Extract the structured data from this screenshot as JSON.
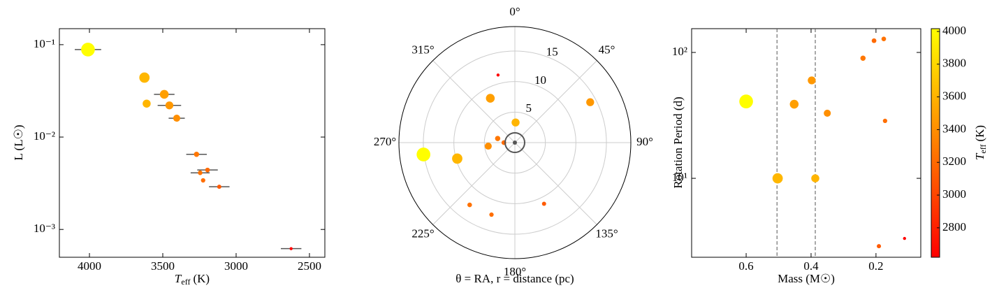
{
  "chart_data": [
    {
      "type": "scatter",
      "xlabel": {
        "symbol": "T",
        "sub": "eff",
        "unit": "(K)"
      },
      "ylabel": "L (L☉)",
      "x": [
        4010,
        3625,
        3490,
        3610,
        3455,
        3405,
        3270,
        3195,
        3245,
        3225,
        3115,
        2625
      ],
      "xerr": [
        90,
        null,
        70,
        null,
        80,
        55,
        70,
        70,
        65,
        null,
        70,
        70
      ],
      "y": [
        0.0885,
        0.044,
        0.029,
        0.023,
        0.022,
        0.016,
        0.0065,
        0.0044,
        0.0041,
        0.0034,
        0.0029,
        0.00062
      ],
      "xlim": [
        4205,
        2395
      ],
      "ylim": [
        0.0005,
        0.149
      ],
      "yscale": "log",
      "xticks": [
        4000,
        3500,
        3000,
        2500
      ],
      "yticks": [
        {
          "value": 0.1,
          "label": "10⁻¹"
        },
        {
          "value": 0.01,
          "label": "10⁻²"
        },
        {
          "value": 0.001,
          "label": "10⁻³"
        }
      ],
      "errorbar_color": "#555555"
    },
    {
      "type": "polar",
      "xlabel": "θ = RA, r = distance (pc)",
      "theta": [
        262.6,
        254.5,
        331,
        2,
        61.8,
        262.5,
        283.5,
        270,
        216,
        198,
        154.5,
        346
      ],
      "r": [
        15.1,
        9.8,
        8.3,
        3.3,
        14.0,
        4.4,
        2.9,
        1.8,
        12.6,
        12.4,
        11.1,
        11.4
      ],
      "rlim": [
        0,
        19
      ],
      "rticks": [
        5,
        10,
        15
      ],
      "thetaticks": [
        {
          "value": 0,
          "label": "0°"
        },
        {
          "value": 45,
          "label": "45°"
        },
        {
          "value": 90,
          "label": "90°"
        },
        {
          "value": 135,
          "label": "135°"
        },
        {
          "value": 180,
          "label": "180°"
        },
        {
          "value": 225,
          "label": "225°"
        },
        {
          "value": 270,
          "label": "270°"
        },
        {
          "value": 315,
          "label": "315°"
        }
      ]
    },
    {
      "type": "scatter",
      "xlabel": "Mass (M☉)",
      "ylabel": "Rotation Period (d)",
      "x": [
        0.6,
        0.503,
        0.452,
        0.387,
        0.398,
        0.35,
        0.24,
        0.206,
        0.176,
        0.172,
        0.191,
        0.112
      ],
      "y": [
        40.8,
        10,
        38.8,
        10,
        60,
        32.9,
        90,
        124,
        128,
        28.6,
        2.89,
        3.33
      ],
      "xlim": [
        0.768,
        0.062
      ],
      "ylim": [
        2.36,
        154.5
      ],
      "yscale": "log",
      "xticks": [
        0.6,
        0.4,
        0.2
      ],
      "yticks": [
        {
          "value": 10,
          "label": "10¹"
        },
        {
          "value": 100,
          "label": "10²"
        }
      ],
      "vlines": [
        0.505,
        0.387
      ],
      "colorbar": {
        "label": {
          "symbol": "T",
          "sub": "eff",
          "unit": "(K)"
        },
        "lim": [
          2620,
          4017
        ],
        "ticks": [
          2800,
          3000,
          3200,
          3400,
          3600,
          3800,
          4000
        ],
        "cmap": "autumn"
      }
    }
  ]
}
